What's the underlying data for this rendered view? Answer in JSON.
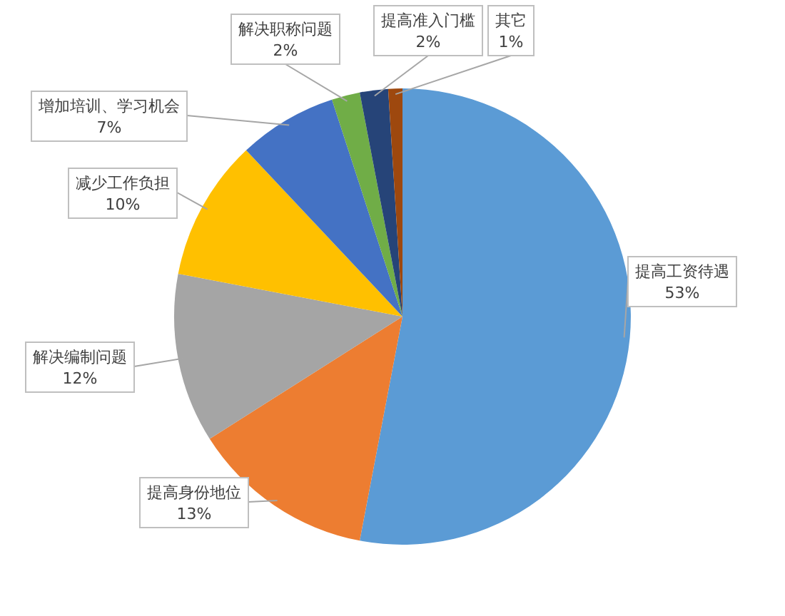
{
  "chart_data": {
    "type": "pie",
    "categories": [
      "提高工资待遇",
      "提高身份地位",
      "解决编制问题",
      "减少工作负担",
      "增加培训、学习机会",
      "解决职称问题",
      "提高准入门槛",
      "其它"
    ],
    "values": [
      53,
      13,
      12,
      10,
      7,
      2,
      2,
      1
    ],
    "colors": [
      "#5b9bd5",
      "#ed7d31",
      "#a5a5a5",
      "#ffc000",
      "#4472c4",
      "#70ad47",
      "#264478",
      "#9e480e"
    ],
    "value_labels": [
      "53%",
      "13%",
      "12%",
      "10%",
      "7%",
      "2%",
      "2%",
      "1%"
    ]
  }
}
